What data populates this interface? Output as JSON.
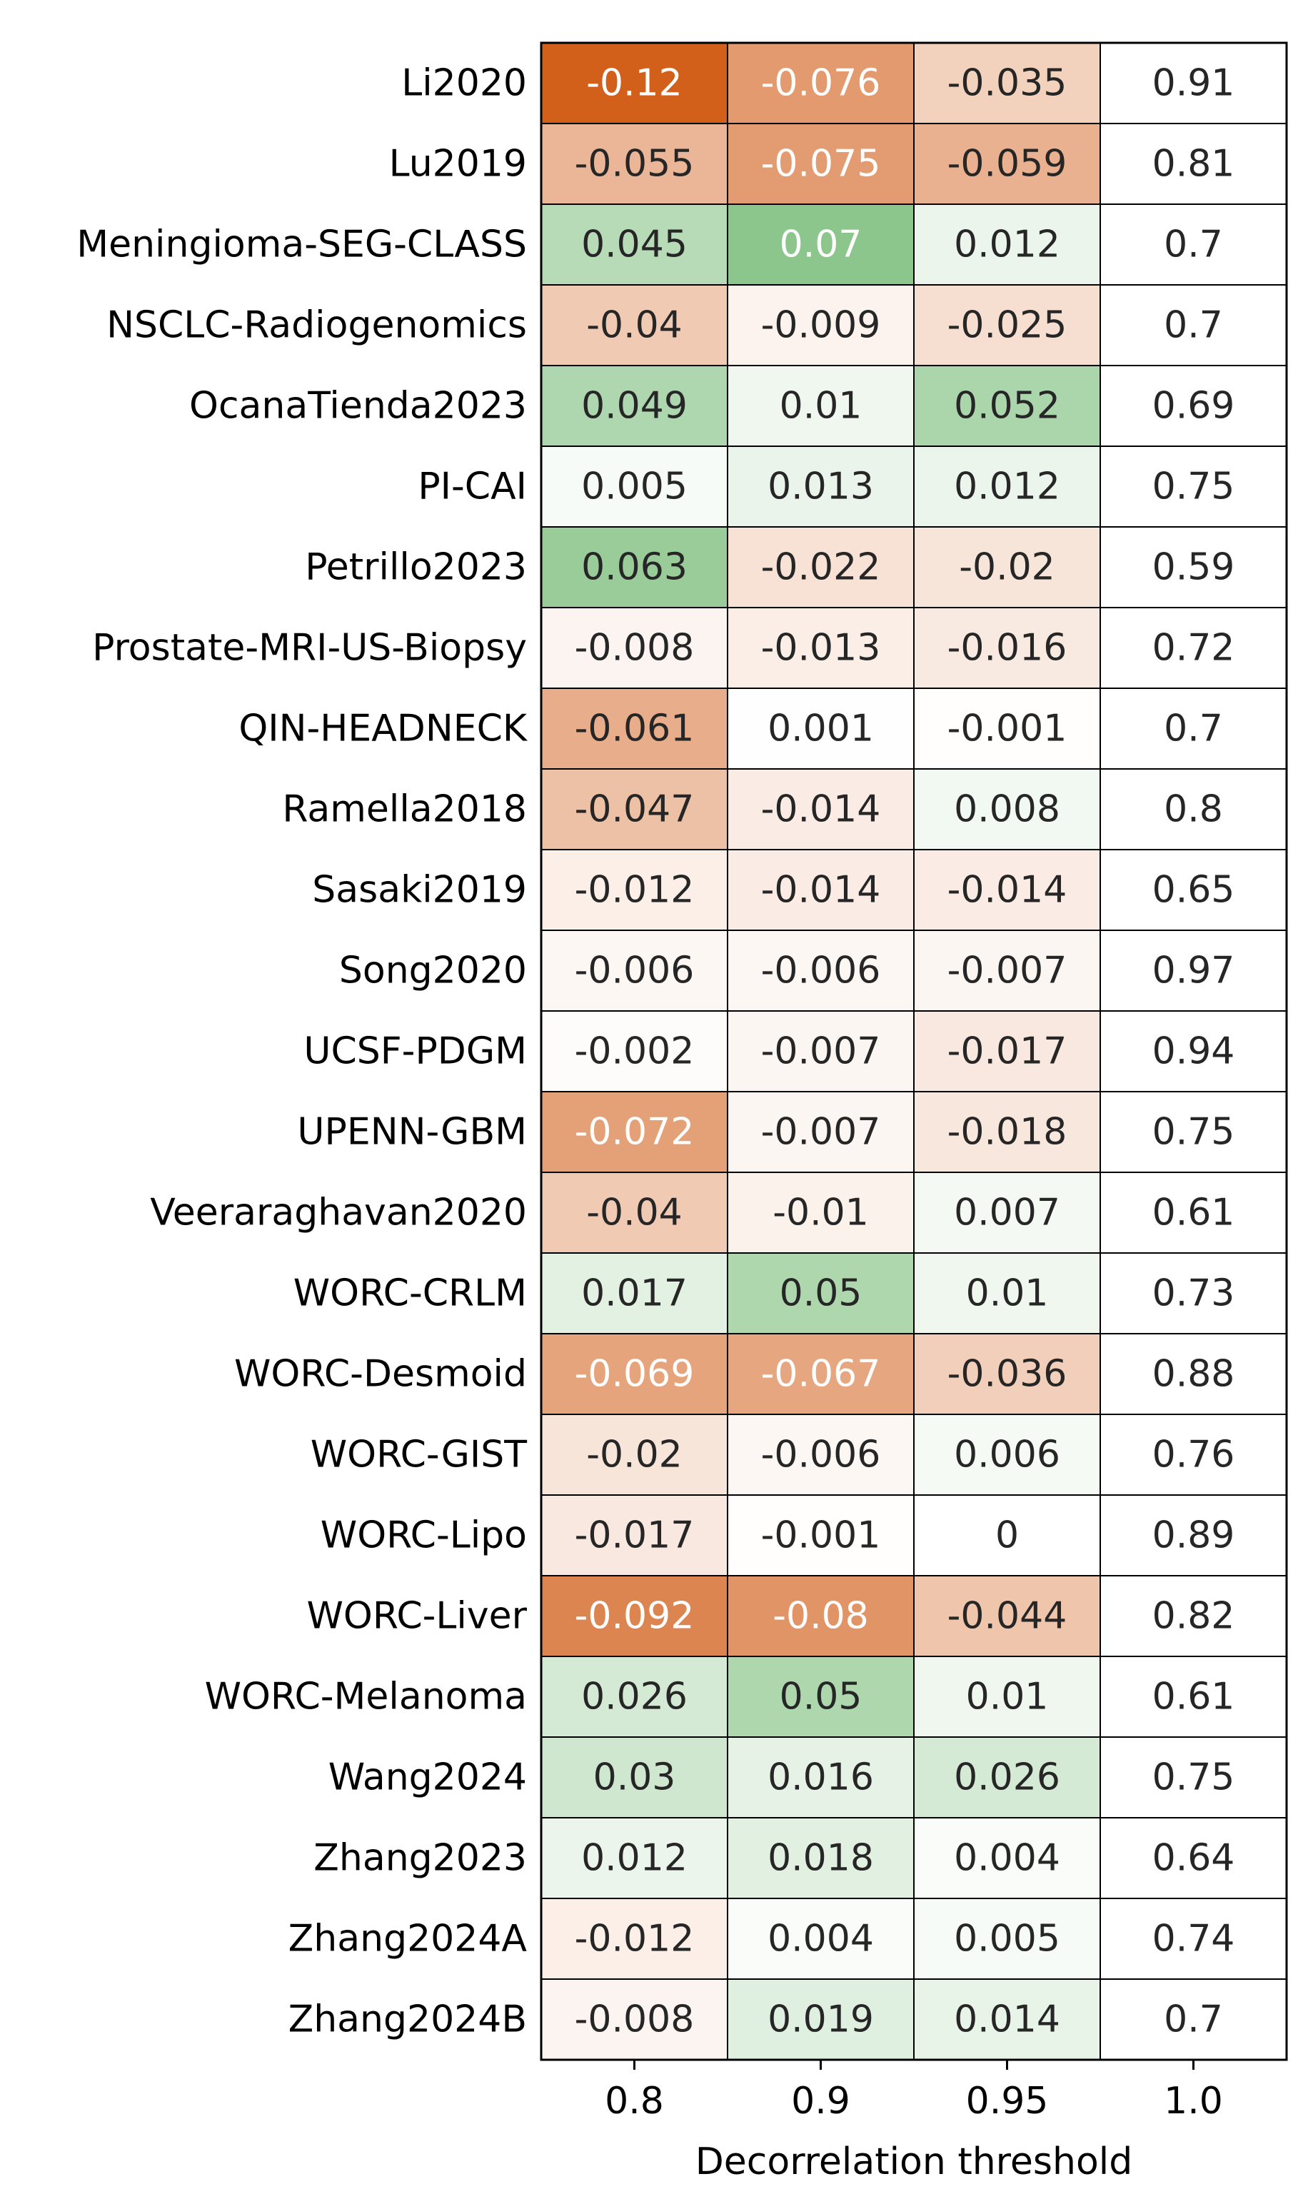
{
  "chart_data": {
    "type": "heatmap",
    "title": "",
    "xlabel": "Decorrelation threshold",
    "ylabel": "",
    "columns": [
      "0.8",
      "0.9",
      "0.95",
      "1.0"
    ],
    "rows": [
      "Li2020",
      "Lu2019",
      "Meningioma-SEG-CLASS",
      "NSCLC-Radiogenomics",
      "OcanaTienda2023",
      "PI-CAI",
      "Petrillo2023",
      "Prostate-MRI-US-Biopsy",
      "QIN-HEADNECK",
      "Ramella2018",
      "Sasaki2019",
      "Song2020",
      "UCSF-PDGM",
      "UPENN-GBM",
      "Veeraraghavan2020",
      "WORC-CRLM",
      "WORC-Desmoid",
      "WORC-GIST",
      "WORC-Lipo",
      "WORC-Liver",
      "WORC-Melanoma",
      "Wang2024",
      "Zhang2023",
      "Zhang2024A",
      "Zhang2024B"
    ],
    "cell_labels": [
      [
        "-0.12",
        "-0.076",
        "-0.035",
        "0.91"
      ],
      [
        "-0.055",
        "-0.075",
        "-0.059",
        "0.81"
      ],
      [
        "0.045",
        "0.07",
        "0.012",
        "0.7"
      ],
      [
        "-0.04",
        "-0.009",
        "-0.025",
        "0.7"
      ],
      [
        "0.049",
        "0.01",
        "0.052",
        "0.69"
      ],
      [
        "0.005",
        "0.013",
        "0.012",
        "0.75"
      ],
      [
        "0.063",
        "-0.022",
        "-0.02",
        "0.59"
      ],
      [
        "-0.008",
        "-0.013",
        "-0.016",
        "0.72"
      ],
      [
        "-0.061",
        "0.001",
        "-0.001",
        "0.7"
      ],
      [
        "-0.047",
        "-0.014",
        "0.008",
        "0.8"
      ],
      [
        "-0.012",
        "-0.014",
        "-0.014",
        "0.65"
      ],
      [
        "-0.006",
        "-0.006",
        "-0.007",
        "0.97"
      ],
      [
        "-0.002",
        "-0.007",
        "-0.017",
        "0.94"
      ],
      [
        "-0.072",
        "-0.007",
        "-0.018",
        "0.75"
      ],
      [
        "-0.04",
        "-0.01",
        "0.007",
        "0.61"
      ],
      [
        "0.017",
        "0.05",
        "0.01",
        "0.73"
      ],
      [
        "-0.069",
        "-0.067",
        "-0.036",
        "0.88"
      ],
      [
        "-0.02",
        "-0.006",
        "0.006",
        "0.76"
      ],
      [
        "-0.017",
        "-0.001",
        "0",
        "0.89"
      ],
      [
        "-0.092",
        "-0.08",
        "-0.044",
        "0.82"
      ],
      [
        "0.026",
        "0.05",
        "0.01",
        "0.61"
      ],
      [
        "0.03",
        "0.016",
        "0.026",
        "0.75"
      ],
      [
        "0.012",
        "0.018",
        "0.004",
        "0.64"
      ],
      [
        "-0.012",
        "0.004",
        "0.005",
        "0.74"
      ],
      [
        "-0.008",
        "0.019",
        "0.014",
        "0.7"
      ]
    ],
    "reference_column": "1.0",
    "color_scale": {
      "negative_max": "#d2601b",
      "neutral": "#ffffff",
      "positive_max": "#3c9e3c",
      "abs_max": 0.12,
      "reference_fill": "#ffffff"
    },
    "text_colors": {
      "dark": "#262626",
      "light": "#ffffff"
    },
    "grid_color": "#000000"
  }
}
